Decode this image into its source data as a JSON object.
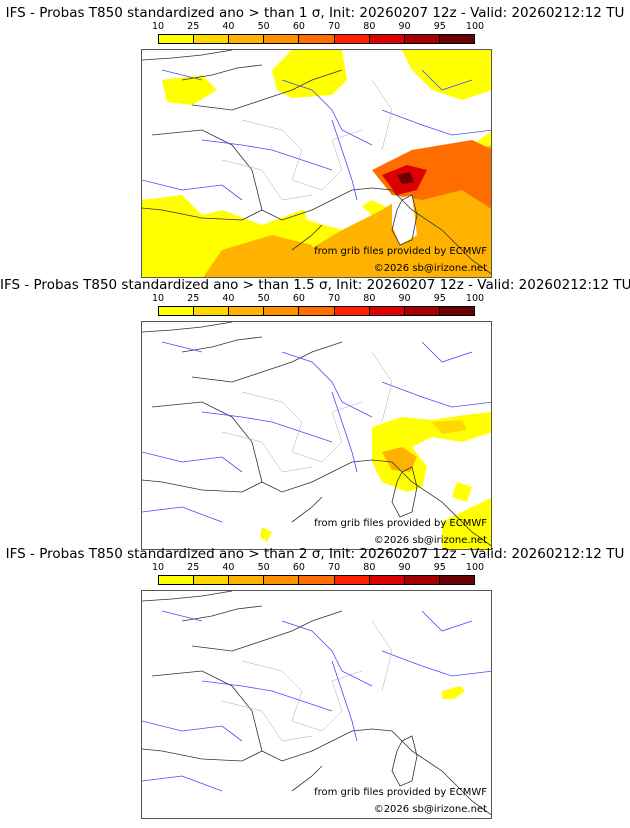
{
  "colorbar": {
    "ticks": [
      "10",
      "25",
      "40",
      "50",
      "60",
      "70",
      "80",
      "90",
      "95",
      "100"
    ],
    "colors": [
      "#ffff00",
      "#ffd700",
      "#ffb300",
      "#ff9000",
      "#ff6d00",
      "#ff2000",
      "#dd0000",
      "#a50000",
      "#6b0000"
    ]
  },
  "panels": [
    {
      "title": "IFS - Probas T850  standardized ano > than 1 σ, Init: 20260207 12z - Valid: 20260212:12 TU",
      "source": "from grib files provided by ECMWF",
      "copyright": "©2026 sb@irizone.net"
    },
    {
      "title": "IFS - Probas T850  standardized ano > than 1.5 σ, Init: 20260207 12z - Valid: 20260212:12 TU",
      "source": "from grib files provided by ECMWF",
      "copyright": "©2026 sb@irizone.net"
    },
    {
      "title": "IFS - Probas T850  standardized ano > than 2 σ, Init: 20260207 12z - Valid: 20260212:12 TU",
      "source": "from grib files provided by ECMWF",
      "copyright": "©2026 sb@irizone.net"
    }
  ]
}
